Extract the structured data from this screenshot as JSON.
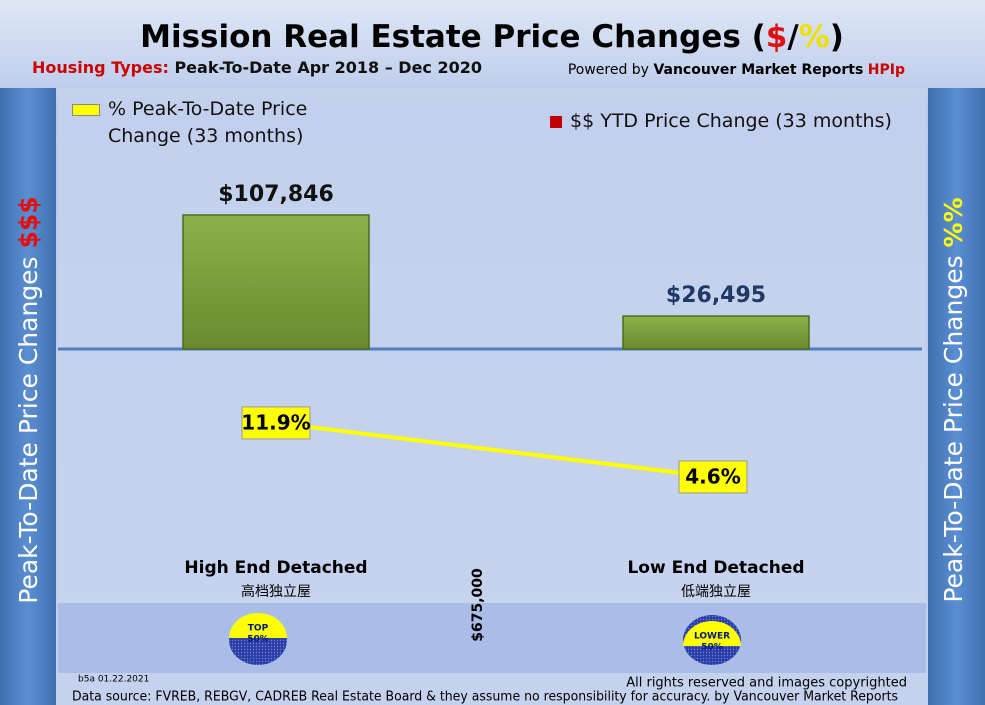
{
  "chart_data": {
    "type": "bar",
    "title_parts": [
      "Mission Real Estate Price Changes (",
      "$",
      "/",
      "%",
      ")"
    ],
    "subtitle": {
      "label": "Housing Types:",
      "text": "Peak-To-Date Apr 2018 – Dec 2020"
    },
    "credit": {
      "text": "Powered by",
      "brand": "Vancouver Market Reports",
      "tag": "HPIp"
    },
    "left_axis": {
      "label": "Peak-To-Date Price Changes",
      "symbol": "$$$"
    },
    "right_axis": {
      "label": "Peak-To-Date  Price  Changes",
      "symbol": "%%"
    },
    "categories": [
      "High End Detached",
      "Low End Detached"
    ],
    "category_subtitles": [
      "高档独立屋",
      "低端独立屋"
    ],
    "divider_label": "$675,000",
    "badges": [
      [
        "TOP",
        "50%"
      ],
      [
        "LOWER",
        "50%"
      ]
    ],
    "series": [
      {
        "name": "$$ YTD Price Change (33 months)",
        "type": "bar",
        "color": "#77933c",
        "values": [
          107846,
          26495
        ],
        "value_labels": [
          "$107,846",
          "$26,495"
        ]
      },
      {
        "name": "% Peak-To-Date Price Change (33 months)",
        "type": "line",
        "color": "#ffff00",
        "values": [
          11.9,
          4.6
        ],
        "value_labels": [
          "11.9%",
          "4.6%"
        ]
      }
    ],
    "footer": {
      "version": "b5a 01.22.2021",
      "rights": "All rights reserved and  images copyrighted",
      "source": "Data source: FVREB, REBGV, CADREB Real Estate Board & they assume no responsibility for accuracy. by Vancouver Market Reports"
    }
  }
}
